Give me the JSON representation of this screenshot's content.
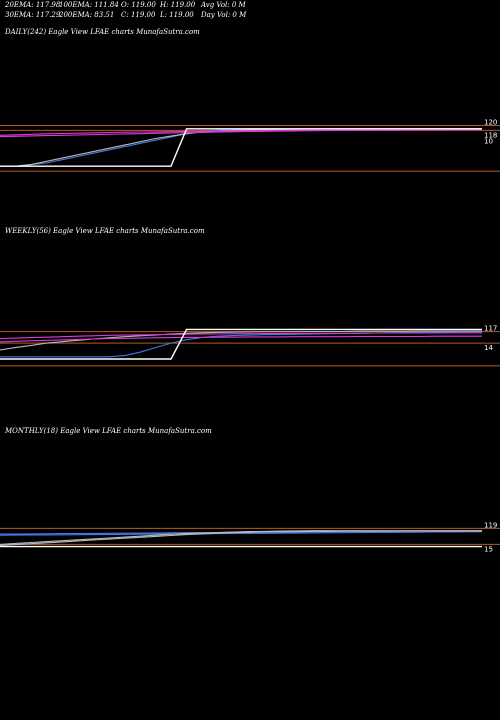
{
  "header": {
    "row1": [
      "20EMA: 117.98",
      "100EMA: 111.84",
      "O: 119.00",
      "H: 119.00",
      "Avg Vol: 0  M"
    ],
    "row2": [
      "30EMA: 117.29",
      "200EMA: 83.51",
      "C: 119.00",
      "L: 119.00",
      "Day Vol: 0  M"
    ]
  },
  "colors": {
    "background": "#000000",
    "price": "#ffffff",
    "support_resistance": "#b85a1e",
    "ema_blue": "#3f7be6",
    "ema_magenta": "#d83ad8",
    "ema_grey": "#b8b8b8"
  },
  "chart_data": [
    {
      "type": "line",
      "title": "DAILY(242) Eagle  View  LFAE charts MunafaSutra.com",
      "tick_labels": [
        "120",
        "118",
        "10"
      ],
      "hlines": [
        121,
        118,
        93
      ],
      "ylim": [
        90,
        125
      ],
      "price": {
        "values": [
          96,
          96,
          96,
          96,
          96,
          96,
          96,
          96,
          96,
          96,
          96,
          96,
          119,
          119,
          119,
          119,
          119,
          119,
          119,
          119,
          119,
          119,
          119,
          119,
          119,
          119,
          119,
          119,
          119,
          119,
          119,
          119
        ]
      },
      "emas": [
        {
          "color": "blue",
          "values": [
            96,
            96,
            97,
            98,
            100,
            102,
            104,
            106,
            108,
            110,
            112,
            114,
            116,
            117.4,
            118.1,
            118.5,
            118.7,
            118.8,
            118.9,
            118.95,
            119,
            119,
            119,
            119,
            119,
            119,
            119,
            119,
            119,
            119,
            119,
            119
          ]
        },
        {
          "color": "grey",
          "values": [
            96,
            96,
            97,
            99,
            101,
            103,
            105,
            107,
            109,
            111,
            113,
            114.5,
            116,
            117,
            117.6,
            118,
            118.3,
            118.5,
            118.6,
            118.7,
            118.8,
            118.85,
            118.9,
            118.9,
            118.95,
            118.95,
            119,
            119,
            119,
            119,
            119,
            119
          ]
        },
        {
          "color": "magenta",
          "values": [
            115,
            115.3,
            115.6,
            115.9,
            116.1,
            116.3,
            116.5,
            116.7,
            116.9,
            117.0,
            117.1,
            117.2,
            117.4,
            117.5,
            117.6,
            117.7,
            117.8,
            117.9,
            118.0,
            118.05,
            118.1,
            118.15,
            118.2,
            118.25,
            118.3,
            118.35,
            118.4,
            118.45,
            118.5,
            118.55,
            118.6,
            118.65
          ]
        },
        {
          "color": "magenta",
          "values": [
            114.2,
            114.4,
            114.6,
            114.8,
            115.0,
            115.2,
            115.4,
            115.6,
            115.8,
            116.0,
            116.2,
            116.4,
            116.6,
            116.8,
            117.0,
            117.15,
            117.3,
            117.45,
            117.6,
            117.7,
            117.8,
            117.9,
            118.0,
            118.05,
            118.1,
            118.15,
            118.2,
            118.25,
            118.3,
            118.35,
            118.4,
            118.45
          ]
        }
      ]
    },
    {
      "type": "line",
      "title": "WEEKLY(56) Eagle  View  LFAE charts MunafaSutra.com",
      "tick_labels": [
        "117",
        "14"
      ],
      "hlines": [
        119,
        114,
        104
      ],
      "ylim": [
        100,
        125
      ],
      "price": {
        "values": [
          107,
          107,
          107,
          107,
          107,
          107,
          107,
          107,
          107,
          107,
          107,
          107,
          120,
          120,
          120,
          120,
          120,
          120,
          120,
          120,
          120,
          120,
          120,
          120,
          120,
          120,
          120,
          120,
          120,
          120,
          120,
          120
        ]
      },
      "emas": [
        {
          "color": "blue",
          "values": [
            108,
            108,
            108,
            108,
            108,
            108,
            108,
            108,
            108.5,
            110,
            112,
            114,
            115.5,
            116.5,
            117,
            117.3,
            117.5,
            117.7,
            117.8,
            117.9,
            118,
            118.1,
            118.2,
            118.3,
            118.4,
            118.5,
            118.6,
            118.7,
            118.8,
            118.9,
            119,
            119
          ]
        },
        {
          "color": "grey",
          "values": [
            111,
            112,
            113,
            114,
            114.6,
            115.2,
            115.8,
            116.3,
            116.8,
            117.2,
            117.6,
            118,
            118.3,
            118.5,
            118.7,
            118.8,
            118.9,
            119,
            119,
            119,
            119.1,
            119.1,
            119.1,
            119.2,
            119.2,
            119.2,
            119.2,
            119.3,
            119.3,
            119.3,
            119.3,
            119.3
          ]
        },
        {
          "color": "magenta",
          "values": [
            116,
            116.2,
            116.4,
            116.6,
            116.8,
            117,
            117.2,
            117.4,
            117.5,
            117.6,
            117.7,
            117.8,
            117.9,
            118,
            118,
            118.1,
            118.1,
            118.2,
            118.2,
            118.2,
            118.3,
            118.3,
            118.3,
            118.3,
            118.4,
            118.4,
            118.4,
            118.4,
            118.4,
            118.5,
            118.5,
            118.5
          ]
        },
        {
          "color": "magenta",
          "values": [
            114.5,
            114.8,
            115,
            115.2,
            115.4,
            115.6,
            115.8,
            116,
            116.1,
            116.2,
            116.3,
            116.4,
            116.5,
            116.5,
            116.6,
            116.6,
            116.7,
            116.7,
            116.7,
            116.8,
            116.8,
            116.8,
            116.8,
            116.9,
            116.9,
            116.9,
            116.9,
            116.9,
            117,
            117,
            117,
            117
          ]
        }
      ]
    },
    {
      "type": "line",
      "title": "MONTHLY(18) Eagle  View  LFAE charts MunafaSutra.com",
      "tick_labels": [
        "119",
        "15"
      ],
      "hlines": [
        120,
        113
      ],
      "ylim": [
        100,
        125
      ],
      "price": {
        "values": [
          112,
          112,
          112,
          112,
          112,
          112,
          112,
          112,
          112,
          112,
          112,
          112,
          112,
          112,
          112,
          112,
          112,
          112,
          112,
          112,
          112,
          112,
          112,
          112,
          112,
          112,
          112,
          112,
          112,
          112,
          112,
          112
        ]
      },
      "emas": [
        {
          "color": "blue",
          "values": [
            117.5,
            117.55,
            117.6,
            117.65,
            117.7,
            117.75,
            117.8,
            117.85,
            117.9,
            117.95,
            118,
            118.05,
            118.1,
            118.15,
            118.2,
            118.25,
            118.3,
            118.35,
            118.4,
            118.45,
            118.5,
            118.55,
            118.6,
            118.65,
            118.7,
            118.75,
            118.8,
            118.85,
            118.9,
            118.95,
            119,
            119
          ]
        },
        {
          "color": "blue",
          "values": [
            117,
            117.05,
            117.1,
            117.15,
            117.2,
            117.25,
            117.3,
            117.35,
            117.4,
            117.45,
            117.5,
            117.55,
            117.6,
            117.65,
            117.7,
            117.75,
            117.8,
            117.85,
            117.9,
            117.95,
            118,
            118.05,
            118.1,
            118.15,
            118.2,
            118.25,
            118.3,
            118.35,
            118.4,
            118.45,
            118.5,
            118.55
          ]
        },
        {
          "color": "grey",
          "values": [
            113,
            113.4,
            113.8,
            114.2,
            114.6,
            115,
            115.4,
            115.8,
            116.2,
            116.6,
            117,
            117.4,
            117.8,
            118,
            118.2,
            118.4,
            118.6,
            118.7,
            118.8,
            118.9,
            119,
            119,
            119,
            119,
            119,
            119,
            119,
            119,
            119,
            119,
            119,
            119
          ]
        },
        {
          "color": "grey",
          "values": [
            112.5,
            112.9,
            113.3,
            113.7,
            114.1,
            114.5,
            114.9,
            115.3,
            115.7,
            116.1,
            116.5,
            116.9,
            117.3,
            117.6,
            117.9,
            118.1,
            118.3,
            118.4,
            118.5,
            118.6,
            118.7,
            118.7,
            118.8,
            118.8,
            118.8,
            118.8,
            118.8,
            118.8,
            118.8,
            118.8,
            118.8,
            118.8
          ]
        }
      ]
    }
  ]
}
